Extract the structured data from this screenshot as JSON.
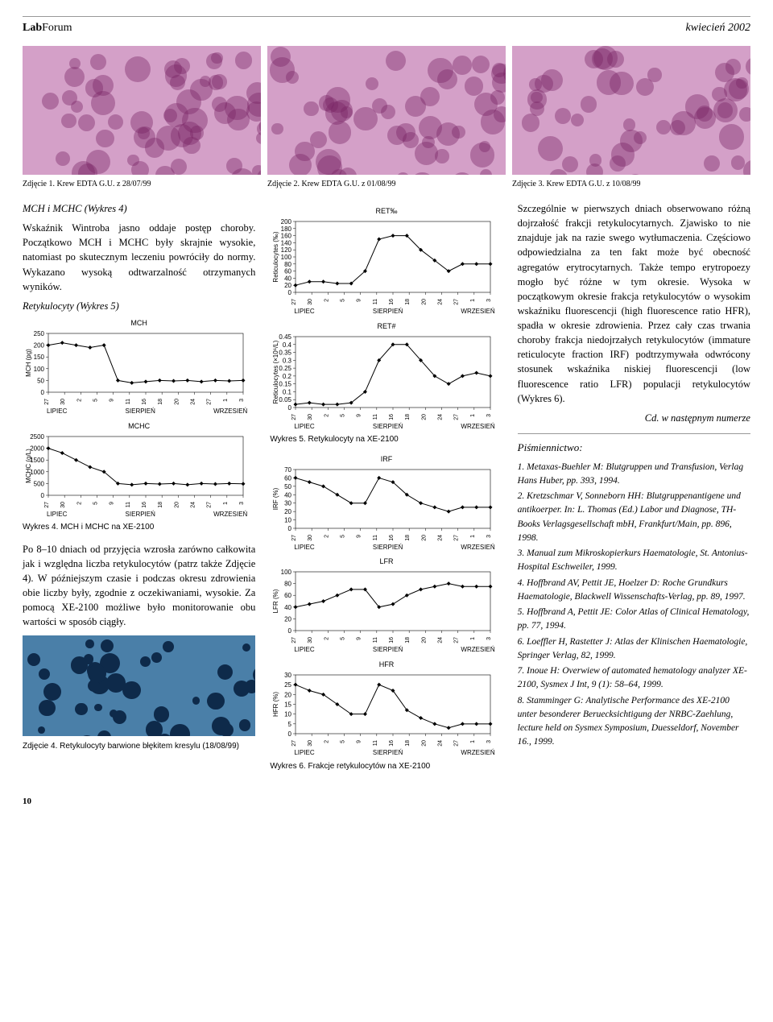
{
  "header": {
    "brand_bold": "Lab",
    "brand_light": "Forum",
    "issue": "kwiecień 2002"
  },
  "top_images": {
    "cap1": "Zdjęcie 1. Krew EDTA G.U. z 28/07/99",
    "cap2": "Zdjęcie 2. Krew EDTA G.U. z 01/08/99",
    "cap3": "Zdjęcie 3. Krew EDTA G.U. z 10/08/99"
  },
  "col1": {
    "p1_head": "MCH i MCHC (Wykres 4)",
    "p1": "Wskaźnik Wintroba jasno oddaje postęp choroby. Początkowo MCH i MCHC były skrajnie wysokie, natomiast po skutecznym leczeniu powróciły do normy. Wykazano wysoką odtwarzalność otrzymanych wyników.",
    "p2_head": "Retykulocyty (Wykres 5)",
    "fig4_cap": "Wykres 4. MCH i MCHC na XE-2100",
    "p3": "Po 8–10 dniach od przyjęcia wzrosła zarówno całkowita jak i względna liczba retykulocytów (patrz także Zdjęcie 4). W późniejszym czasie i podczas okresu zdrowienia obie liczby były, zgodnie z oczekiwaniami, wysokie. Za pomocą XE-2100 możliwe było monitorowanie obu wartości w sposób ciągły.",
    "fig_bottom_cap": "Zdjęcie 4. Retykulocyty barwione błękitem kresylu (18/08/99)"
  },
  "col2": {
    "fig5_cap": "Wykres 5. Retykulocyty na XE-2100",
    "fig6_cap": "Wykres 6. Frakcje retykulocytów na XE-2100"
  },
  "col3": {
    "p1": "Szczególnie w pierwszych dniach obserwowano różną dojrzałość frakcji retykulocytarnych. Zjawisko to nie znajduje jak na razie swego wytłumaczenia. Częściowo odpowiedzialna za ten fakt może być obecność agregatów erytrocytarnych. Także tempo erytropoezy mogło być różne w tym okresie. Wysoka w początkowym okresie frakcja retykulocytów o wysokim wskaźniku fluorescencji (high fluorescence ratio HFR), spadła w okresie zdrowienia. Przez cały czas trwania choroby frakcja niedojrzałych retykulocytów (immature reticulocyte fraction IRF) podtrzymywała odwrócony stosunek wskaźnika niskiej fluorescencji (low fluorescence ratio LFR) populacji retykulocytów (Wykres 6).",
    "cd": "Cd. w następnym numerze",
    "refs_head": "Piśmiennictwo:",
    "refs": [
      "1. Metaxas-Buehler M: Blutgruppen und Transfusion, Verlag Hans Huber, pp. 393, 1994.",
      "2. Kretzschmar V, Sonneborn HH: Blutgruppenantigene und antikoerper. In: L. Thomas (Ed.) Labor und Diagnose, TH-Books Verlagsgesellschaft mbH, Frankfurt/Main, pp. 896, 1998.",
      "3. Manual zum Mikroskopierkurs Haematologie, St. Antonius-Hospital Eschweiler, 1999.",
      "4. Hoffbrand AV, Pettit JE, Hoelzer D: Roche Grundkurs Haematologie, Blackwell Wissenschafts-Verlag, pp. 89, 1997.",
      "5. Hoffbrand A, Pettit JE: Color Atlas of Clinical Hematology, pp. 77, 1994.",
      "6. Loeffler H, Rastetter J: Atlas der Klinischen Haematologie, Springer Verlag, 82, 1999.",
      "7. Inoue H: Overwiew of automated hematology analyzer XE-2100, Sysmex J Int, 9 (1): 58–64, 1999.",
      "8. Stamminger G: Analytische Performance des XE-2100 unter besonderer Beruecksichtigung der NRBC-Zaehlung, lecture held on Sysmex Symposium, Duesseldorf, November 16., 1999."
    ]
  },
  "charts": {
    "months": [
      "LIPIEC",
      "SIERPIEŃ",
      "WRZESIEŃ"
    ],
    "xticks": [
      "27",
      "30",
      "2",
      "5",
      "9",
      "11",
      "16",
      "18",
      "20",
      "24",
      "27",
      "1",
      "3"
    ],
    "line_color": "#000000",
    "grid_color": "#cccccc",
    "bg": "#ffffff",
    "font": 8,
    "mch": {
      "title": "MCH",
      "ylabel": "MCH (pg)",
      "ymin": 0,
      "ymax": 250,
      "ystep": 50,
      "values": [
        200,
        210,
        200,
        190,
        200,
        50,
        40,
        45,
        50,
        48,
        50,
        45,
        50,
        48,
        50
      ]
    },
    "mchc": {
      "title": "MCHC",
      "ylabel": "MCHC (g/L)",
      "ymin": 0,
      "ymax": 2500,
      "ystep": 500,
      "values": [
        2000,
        1800,
        1500,
        1200,
        1000,
        500,
        450,
        500,
        480,
        500,
        450,
        500,
        480,
        500,
        490
      ]
    },
    "ret_permille": {
      "title": "RET‰",
      "ylabel": "Reticulocytes (‰)",
      "ymin": 0,
      "ymax": 200,
      "ystep": 20,
      "values": [
        20,
        30,
        30,
        25,
        25,
        60,
        150,
        160,
        160,
        120,
        90,
        60,
        80,
        80,
        80
      ]
    },
    "ret_hash": {
      "title": "RET#",
      "ylabel": "Reticulocytes (×10⁶/L)",
      "ymin": 0,
      "ymax": 0.45,
      "ystep": 0.05,
      "values": [
        0.02,
        0.03,
        0.02,
        0.02,
        0.03,
        0.1,
        0.3,
        0.4,
        0.4,
        0.3,
        0.2,
        0.15,
        0.2,
        0.22,
        0.2
      ]
    },
    "irf": {
      "title": "IRF",
      "ylabel": "IRF (%)",
      "ymin": 0,
      "ymax": 70,
      "ystep": 10,
      "values": [
        60,
        55,
        50,
        40,
        30,
        30,
        60,
        55,
        40,
        30,
        25,
        20,
        25,
        25,
        25
      ]
    },
    "lfr": {
      "title": "LFR",
      "ylabel": "LFR (%)",
      "ymin": 0,
      "ymax": 100,
      "ystep": 20,
      "values": [
        40,
        45,
        50,
        60,
        70,
        70,
        40,
        45,
        60,
        70,
        75,
        80,
        75,
        75,
        75
      ]
    },
    "hfr": {
      "title": "HFR",
      "ylabel": "HFR (%)",
      "ymin": 0,
      "ymax": 30,
      "ystep": 5,
      "values": [
        25,
        22,
        20,
        15,
        10,
        10,
        25,
        22,
        12,
        8,
        5,
        3,
        5,
        5,
        5
      ]
    }
  },
  "pagenum": "10"
}
